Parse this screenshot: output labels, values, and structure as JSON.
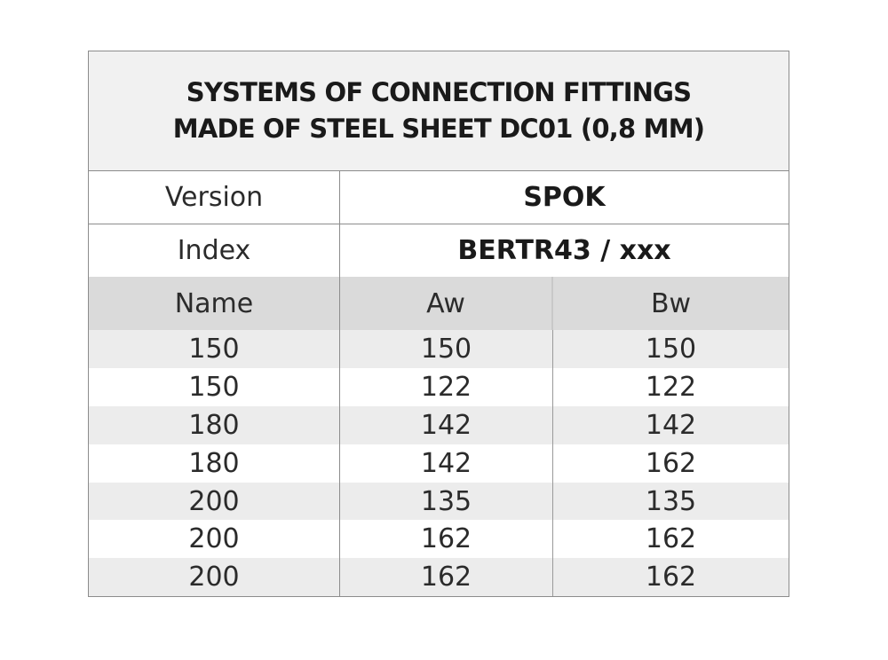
{
  "title": {
    "line1": "SYSTEMS OF CONNECTION FITTINGS",
    "line2": "MADE OF STEEL SHEET DC01 (0,8 MM)"
  },
  "version": {
    "label": "Version",
    "value": "SPOK"
  },
  "index": {
    "label": "Index",
    "value": "BERTR43 / xxx"
  },
  "columns": [
    "Name",
    "Aw",
    "Bw"
  ],
  "rows": [
    [
      "150",
      "150",
      "150"
    ],
    [
      "150",
      "122",
      "122"
    ],
    [
      "180",
      "142",
      "142"
    ],
    [
      "180",
      "142",
      "162"
    ],
    [
      "200",
      "135",
      "135"
    ],
    [
      "200",
      "162",
      "162"
    ],
    [
      "200",
      "162",
      "162"
    ]
  ]
}
